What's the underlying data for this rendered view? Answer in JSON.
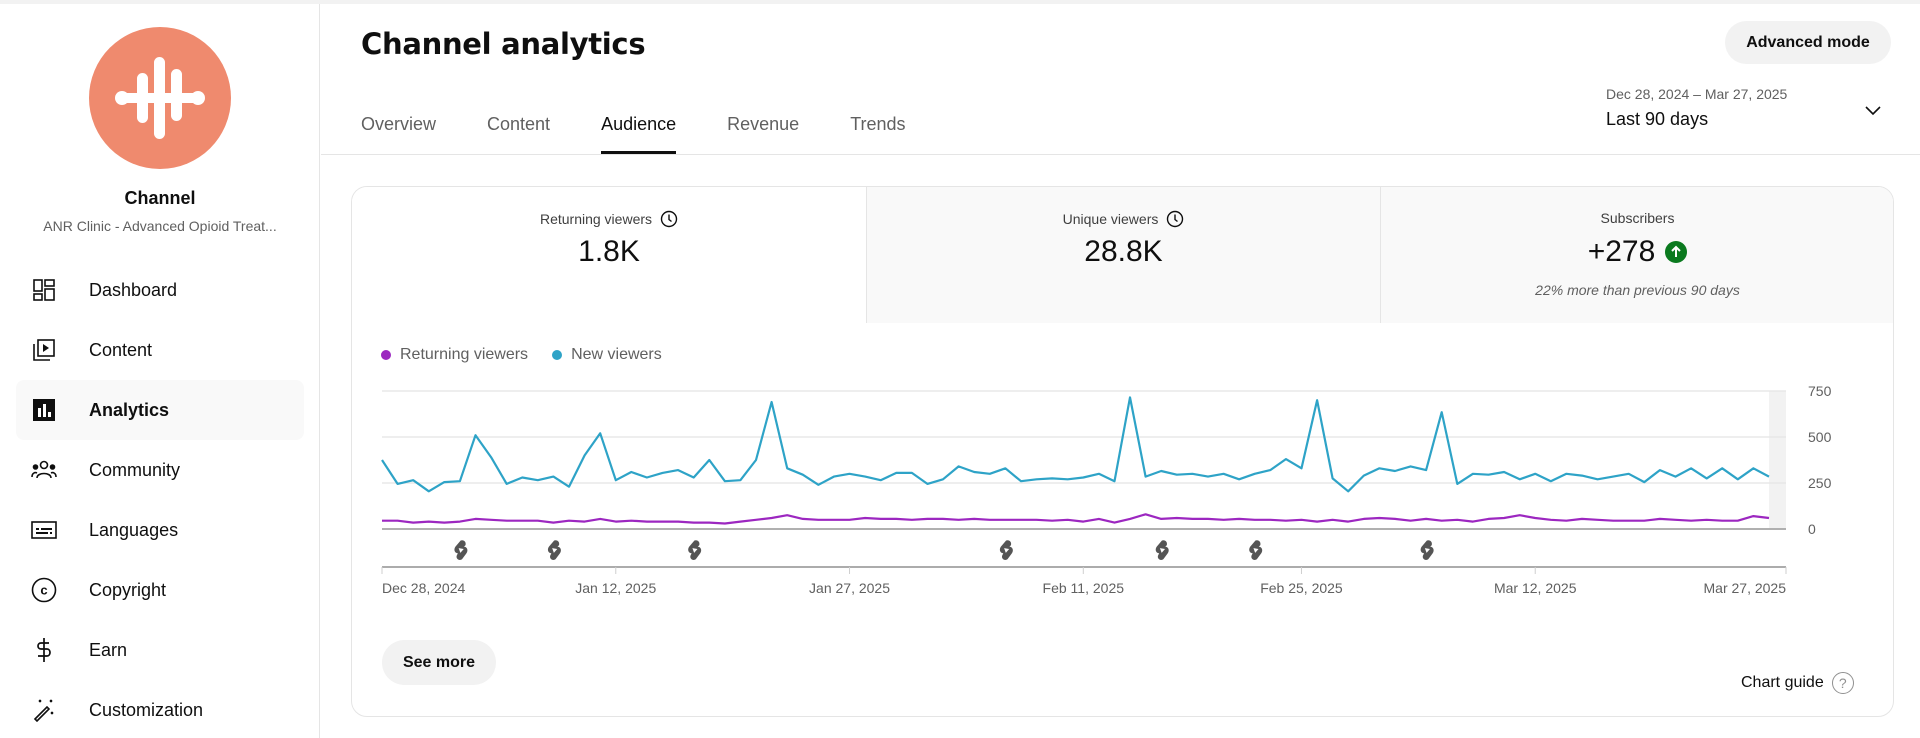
{
  "channel": {
    "label": "Channel",
    "name": "ANR Clinic - Advanced Opioid Treat...",
    "avatar_color": "#ef8a6e"
  },
  "sidebar": {
    "items": [
      {
        "label": "Dashboard",
        "icon": "dashboard-icon",
        "active": false
      },
      {
        "label": "Content",
        "icon": "content-icon",
        "active": false
      },
      {
        "label": "Analytics",
        "icon": "analytics-icon",
        "active": true
      },
      {
        "label": "Community",
        "icon": "community-icon",
        "active": false
      },
      {
        "label": "Languages",
        "icon": "subtitles-icon",
        "active": false
      },
      {
        "label": "Copyright",
        "icon": "copyright-icon",
        "active": false
      },
      {
        "label": "Earn",
        "icon": "dollar-icon",
        "active": false
      },
      {
        "label": "Customization",
        "icon": "magic-wand-icon",
        "active": false
      }
    ]
  },
  "header": {
    "title": "Channel analytics",
    "advanced_mode_label": "Advanced mode",
    "tabs": [
      {
        "label": "Overview",
        "active": false
      },
      {
        "label": "Content",
        "active": false
      },
      {
        "label": "Audience",
        "active": true
      },
      {
        "label": "Revenue",
        "active": false
      },
      {
        "label": "Trends",
        "active": false
      }
    ],
    "date_range": "Dec 28, 2024 – Mar 27, 2025",
    "date_preset": "Last 90 days"
  },
  "metrics": [
    {
      "title": "Returning viewers",
      "value": "1.8K",
      "icon": "clock-icon",
      "subtitle": ""
    },
    {
      "title": "Unique viewers",
      "value": "28.8K",
      "icon": "clock-icon",
      "subtitle": ""
    },
    {
      "title": "Subscribers",
      "value": "+278",
      "icon": "arrow-up-circle-icon",
      "subtitle": "22% more than previous 90 days"
    }
  ],
  "colors": {
    "returning": "#9c27c0",
    "new": "#2ea3c7",
    "up_badge": "#0b7a1f"
  },
  "buttons": {
    "see_more": "See more",
    "chart_guide": "Chart guide"
  },
  "chart_data": {
    "type": "line",
    "title": "",
    "xlabel": "",
    "ylabel": "",
    "ylim": [
      0,
      750
    ],
    "yticks": [
      "0",
      "250",
      "500",
      "750"
    ],
    "xtick_labels": [
      "Dec 28, 2024",
      "Jan 12, 2025",
      "Jan 27, 2025",
      "Feb 11, 2025",
      "Feb 25, 2025",
      "Mar 12, 2025",
      "Mar 27, 2025"
    ],
    "grid": true,
    "legend": "top-left",
    "x_start": "Dec 28, 2024",
    "x_end": "Mar 27, 2025",
    "series": [
      {
        "name": "Returning viewers",
        "values": [
          45,
          45,
          35,
          40,
          35,
          40,
          55,
          50,
          45,
          45,
          45,
          35,
          45,
          40,
          55,
          40,
          45,
          40,
          40,
          40,
          35,
          35,
          30,
          40,
          50,
          60,
          75,
          55,
          50,
          50,
          50,
          60,
          55,
          55,
          50,
          55,
          55,
          50,
          55,
          50,
          50,
          50,
          50,
          45,
          50,
          40,
          55,
          35,
          55,
          80,
          55,
          60,
          55,
          55,
          50,
          55,
          50,
          50,
          45,
          50,
          40,
          50,
          40,
          55,
          60,
          55,
          45,
          55,
          45,
          50,
          40,
          55,
          60,
          75,
          60,
          50,
          45,
          55,
          50,
          45,
          45,
          45,
          55,
          50,
          45,
          50,
          45,
          45,
          70,
          60
        ]
      },
      {
        "name": "New viewers",
        "values": [
          375,
          245,
          265,
          205,
          255,
          260,
          510,
          390,
          245,
          280,
          265,
          285,
          230,
          400,
          520,
          265,
          310,
          280,
          305,
          320,
          280,
          375,
          260,
          265,
          375,
          690,
          330,
          295,
          240,
          285,
          300,
          285,
          265,
          305,
          305,
          245,
          270,
          340,
          310,
          300,
          330,
          260,
          270,
          275,
          270,
          280,
          300,
          260,
          715,
          285,
          315,
          295,
          300,
          285,
          300,
          270,
          300,
          320,
          380,
          330,
          700,
          275,
          205,
          290,
          330,
          315,
          340,
          320,
          635,
          245,
          300,
          295,
          310,
          270,
          300,
          260,
          300,
          290,
          270,
          285,
          300,
          255,
          320,
          285,
          330,
          275,
          330,
          270,
          330,
          285
        ]
      }
    ],
    "shorts_markers_day_index": [
      5,
      11,
      20,
      40,
      50,
      56,
      67
    ]
  }
}
